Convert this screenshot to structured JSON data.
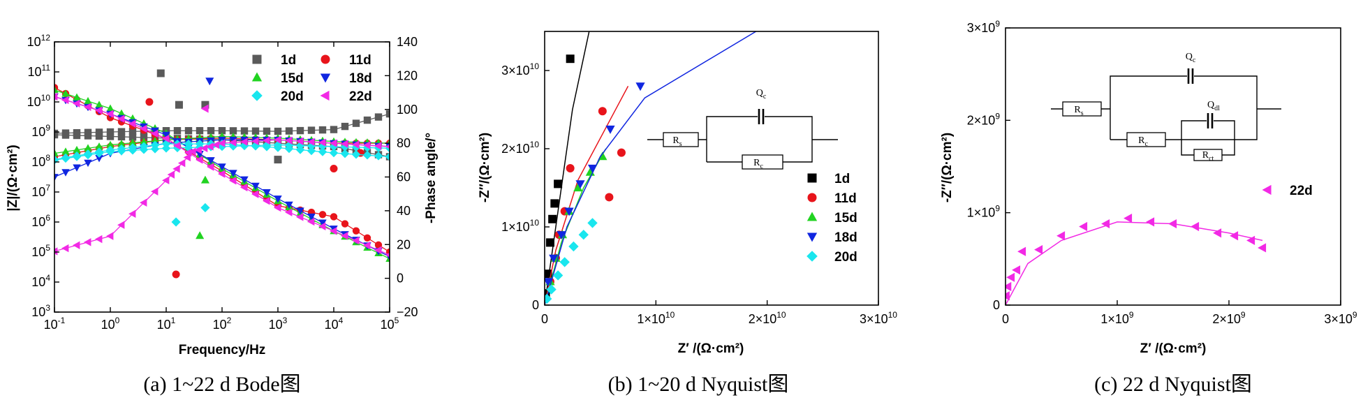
{
  "colors": {
    "1d": "#000000",
    "11d": "#e8141b",
    "15d": "#21d321",
    "18d": "#1026e0",
    "20d": "#19e6ee",
    "22d": "#f229e5",
    "1d_bode": "#5a5a5a"
  },
  "chart_data": [
    {
      "panel": "a",
      "type": "scatter",
      "caption": "(a) 1~22 d Bode图",
      "xlabel": "Frequency/Hz",
      "ylabel": "|Z|/(Ω·cm²)",
      "ylabel_right": "-Phase angle/°",
      "x_scale": "log",
      "y_scale": "log",
      "xlim": [
        0.1,
        100000
      ],
      "ylim": [
        1000,
        1000000000000
      ],
      "ylim_right": [
        -20,
        140
      ],
      "x_ticks": [
        "10^-1",
        "10^0",
        "10^1",
        "10^2",
        "10^3",
        "10^4",
        "10^5"
      ],
      "y_ticks": [
        "10^3",
        "10^4",
        "10^5",
        "10^6",
        "10^7",
        "10^8",
        "10^9",
        "10^10",
        "10^11",
        "10^12"
      ],
      "y_right_ticks": [
        "-20",
        "0",
        "20",
        "40",
        "60",
        "80",
        "100",
        "120",
        "140"
      ],
      "legend": [
        "1d",
        "11d",
        "15d",
        "18d",
        "20d",
        "22d"
      ],
      "legend_position": "top-right",
      "series": [
        {
          "name": "1d",
          "marker": "square",
          "modulus": [
            [
              0.1,
              900000000.0
            ],
            [
              1,
              1000000000.0
            ],
            [
              10,
              1100000000.0
            ],
            [
              100,
              1100000000.0
            ],
            [
              1000,
              1050000000.0
            ],
            [
              10000,
              1200000000.0
            ],
            [
              100000,
              4000000000.0
            ]
          ],
          "phase": [
            [
              0.1,
              85
            ],
            [
              1,
              84
            ],
            [
              10,
              83
            ],
            [
              100,
              82
            ],
            [
              1000,
              80
            ],
            [
              10000,
              78
            ],
            [
              100000,
              72
            ]
          ],
          "scattered": [
            [
              8,
              90000000000.0
            ],
            [
              17,
              8000000000.0
            ],
            [
              50,
              8000000000.0
            ],
            [
              1000,
              120000000.0
            ]
          ]
        },
        {
          "name": "11d",
          "marker": "circle",
          "modulus": [
            [
              0.1,
              30000000000.0
            ],
            [
              1,
              3000000000.0
            ],
            [
              10,
              600000000.0
            ],
            [
              100,
              50000000.0
            ],
            [
              1000,
              3500000.0
            ],
            [
              10000,
              1500000.0
            ],
            [
              100000,
              100000.0
            ]
          ],
          "phase": [
            [
              0.1,
              72
            ],
            [
              1,
              78
            ],
            [
              10,
              82
            ],
            [
              100,
              83
            ],
            [
              1000,
              82
            ],
            [
              10000,
              80
            ],
            [
              100000,
              80
            ]
          ],
          "scattered": [
            [
              5,
              10000000000.0
            ],
            [
              15,
              18000.0
            ],
            [
              10000,
              60000000.0
            ],
            [
              30000,
              200000000.0
            ]
          ]
        },
        {
          "name": "15d",
          "marker": "triangle-up",
          "modulus": [
            [
              0.1,
              25000000000.0
            ],
            [
              1,
              6000000000.0
            ],
            [
              10,
              900000000.0
            ],
            [
              100,
              60000000.0
            ],
            [
              1000,
              5000000.0
            ],
            [
              10000,
              500000.0
            ],
            [
              100000,
              60000.0
            ]
          ],
          "phase": [
            [
              0.1,
              74
            ],
            [
              1,
              79
            ],
            [
              10,
              82
            ],
            [
              100,
              84
            ],
            [
              1000,
              83
            ],
            [
              10000,
              81
            ],
            [
              100000,
              80
            ]
          ],
          "scattered": [
            [
              40,
              350000.0
            ],
            [
              50,
              25000000.0
            ]
          ]
        },
        {
          "name": "18d",
          "marker": "triangle-down",
          "modulus": [
            [
              0.1,
              15000000000.0
            ],
            [
              1,
              4000000000.0
            ],
            [
              10,
              800000000.0
            ],
            [
              100,
              70000000.0
            ],
            [
              1000,
              6000000.0
            ],
            [
              10000,
              600000.0
            ],
            [
              100000,
              70000.0
            ]
          ],
          "phase": [
            [
              0.1,
              60
            ],
            [
              1,
              74
            ],
            [
              10,
              80
            ],
            [
              100,
              82
            ],
            [
              1000,
              82
            ],
            [
              10000,
              80
            ],
            [
              100000,
              78
            ]
          ],
          "scattered": [
            [
              60,
              50000000000.0
            ]
          ]
        },
        {
          "name": "20d",
          "marker": "diamond",
          "modulus": [
            [
              0.1,
              120000000.0
            ],
            [
              1,
              250000000.0
            ],
            [
              10,
              400000000.0
            ],
            [
              100,
              400000000.0
            ],
            [
              1000,
              300000000.0
            ],
            [
              10000,
              200000000.0
            ],
            [
              100000,
              150000000.0
            ]
          ],
          "phase": [
            [
              0.1,
              70
            ],
            [
              1,
              75
            ],
            [
              10,
              77
            ],
            [
              100,
              78
            ],
            [
              1000,
              79
            ],
            [
              10000,
              78
            ],
            [
              100000,
              77
            ]
          ],
          "scattered": [
            [
              15,
              1000000.0
            ],
            [
              50,
              3000000.0
            ]
          ]
        },
        {
          "name": "22d",
          "marker": "triangle-left",
          "modulus": [
            [
              0.1,
              15000000000.0
            ],
            [
              1,
              4000000000.0
            ],
            [
              10,
              600000000.0
            ],
            [
              100,
              40000000.0
            ],
            [
              1000,
              3000000.0
            ],
            [
              10000,
              500000.0
            ],
            [
              100000,
              80000.0
            ]
          ],
          "phase": [
            [
              0.1,
              16
            ],
            [
              1,
              25
            ],
            [
              10,
              58
            ],
            [
              30,
              75
            ],
            [
              100,
              80
            ],
            [
              1000,
              82
            ],
            [
              10000,
              80
            ],
            [
              100000,
              78
            ]
          ],
          "scattered": [
            [
              50,
              6000000000.0
            ]
          ]
        }
      ]
    },
    {
      "panel": "b",
      "type": "scatter",
      "caption": "(b) 1~20 d Nyquist图",
      "xlabel": "Z′ /(Ω·cm²)",
      "ylabel": "-Z″/(Ω·cm²)",
      "xlim": [
        0,
        30000000000
      ],
      "ylim": [
        0,
        35000000000
      ],
      "x_ticks": [
        "0",
        "1×10^10",
        "2×10^10",
        "3×10^10"
      ],
      "y_ticks": [
        "0",
        "1×10^10",
        "2×10^10",
        "3×10^10"
      ],
      "legend": [
        "1d",
        "11d",
        "15d",
        "18d",
        "20d"
      ],
      "legend_position": "right",
      "circuit_labels": [
        "Rs",
        "Qc",
        "Rc"
      ],
      "series": [
        {
          "name": "1d",
          "marker": "square",
          "x": [
            100000000.0,
            300000000.0,
            500000000.0,
            700000000.0,
            900000000.0,
            1200000000.0,
            2300000000.0
          ],
          "y": [
            1500000000.0,
            4000000000.0,
            8000000000.0,
            11000000000.0,
            13000000000.0,
            15500000000.0,
            31500000000.0
          ],
          "fit": [
            [
              0,
              0
            ],
            [
              1000000000.0,
              10000000000.0
            ],
            [
              2500000000.0,
              25000000000.0
            ],
            [
              4000000000.0,
              35000000000.0
            ]
          ]
        },
        {
          "name": "11d",
          "marker": "circle",
          "x": [
            500000000.0,
            1000000000.0,
            1300000000.0,
            1800000000.0,
            2300000000.0,
            5200000000.0,
            5800000000.0,
            6900000000.0
          ],
          "y": [
            3000000000.0,
            6000000000.0,
            9000000000.0,
            12000000000.0,
            17500000000.0,
            24800000000.0,
            13800000000.0,
            19500000000.0
          ],
          "fit": [
            [
              0,
              0
            ],
            [
              1000000000.0,
              7000000000.0
            ],
            [
              3000000000.0,
              16000000000.0
            ],
            [
              6000000000.0,
              24000000000.0
            ],
            [
              7500000000.0,
              28000000000.0
            ]
          ]
        },
        {
          "name": "15d",
          "marker": "triangle-up",
          "x": [
            500000000.0,
            1000000000.0,
            1600000000.0,
            2200000000.0,
            3000000000.0,
            4100000000.0,
            5200000000.0
          ],
          "y": [
            3000000000.0,
            6000000000.0,
            9000000000.0,
            12000000000.0,
            15000000000.0,
            17000000000.0,
            19000000000.0
          ],
          "fit": [
            [
              0,
              0
            ],
            [
              1500000000.0,
              8000000000.0
            ],
            [
              3500000000.0,
              15000000000.0
            ],
            [
              5500000000.0,
              20000000000.0
            ]
          ]
        },
        {
          "name": "18d",
          "marker": "triangle-down",
          "x": [
            300000000.0,
            800000000.0,
            1500000000.0,
            2200000000.0,
            3200000000.0,
            4300000000.0,
            5900000000.0,
            8600000000.0
          ],
          "y": [
            3000000000.0,
            6000000000.0,
            9000000000.0,
            12000000000.0,
            15500000000.0,
            17500000000.0,
            22500000000.0,
            28000000000.0
          ],
          "fit": [
            [
              0,
              0
            ],
            [
              2000000000.0,
              10000000000.0
            ],
            [
              5000000000.0,
              19000000000.0
            ],
            [
              9000000000.0,
              26500000000.0
            ],
            [
              19000000000.0,
              35000000000.0
            ]
          ]
        },
        {
          "name": "20d",
          "marker": "diamond",
          "x": [
            200000000.0,
            600000000.0,
            1200000000.0,
            1800000000.0,
            2600000000.0,
            3500000000.0,
            4300000000.0
          ],
          "y": [
            800000000.0,
            2000000000.0,
            3800000000.0,
            5500000000.0,
            7500000000.0,
            9000000000.0,
            10500000000.0
          ]
        }
      ]
    },
    {
      "panel": "c",
      "type": "scatter",
      "caption": "(c) 22 d Nyquist图",
      "xlabel": "Z′ /(Ω·cm²)",
      "ylabel": "-Z″/(Ω·cm²)",
      "xlim": [
        0,
        3000000000
      ],
      "ylim": [
        0,
        3000000000
      ],
      "x_ticks": [
        "0",
        "1×10^9",
        "2×10^9",
        "3×10^9"
      ],
      "y_ticks": [
        "0",
        "1×10^9",
        "2×10^9",
        "3×10^9"
      ],
      "legend": [
        "22d"
      ],
      "legend_position": "right",
      "circuit_labels": [
        "Rs",
        "Qc",
        "Rc",
        "Qdl",
        "Rct"
      ],
      "series": [
        {
          "name": "22d",
          "marker": "triangle-left",
          "x": [
            5000000.0,
            20000000.0,
            50000000.0,
            100000000.0,
            150000000.0,
            300000000.0,
            500000000.0,
            700000000.0,
            900000000.0,
            1100000000.0,
            1300000000.0,
            1500000000.0,
            1700000000.0,
            1900000000.0,
            2050000000.0,
            2200000000.0,
            2300000000.0
          ],
          "y": [
            100000000.0,
            200000000.0,
            300000000.0,
            380000000.0,
            580000000.0,
            600000000.0,
            750000000.0,
            850000000.0,
            880000000.0,
            940000000.0,
            900000000.0,
            880000000.0,
            850000000.0,
            780000000.0,
            750000000.0,
            700000000.0,
            620000000.0
          ],
          "fit": [
            [
              0,
              0
            ],
            [
              200000000.0,
              450000000.0
            ],
            [
              500000000.0,
              700000000.0
            ],
            [
              1000000000.0,
              900000000.0
            ],
            [
              1500000000.0,
              880000000.0
            ],
            [
              2000000000.0,
              780000000.0
            ],
            [
              2300000000.0,
              700000000.0
            ]
          ]
        }
      ]
    }
  ]
}
